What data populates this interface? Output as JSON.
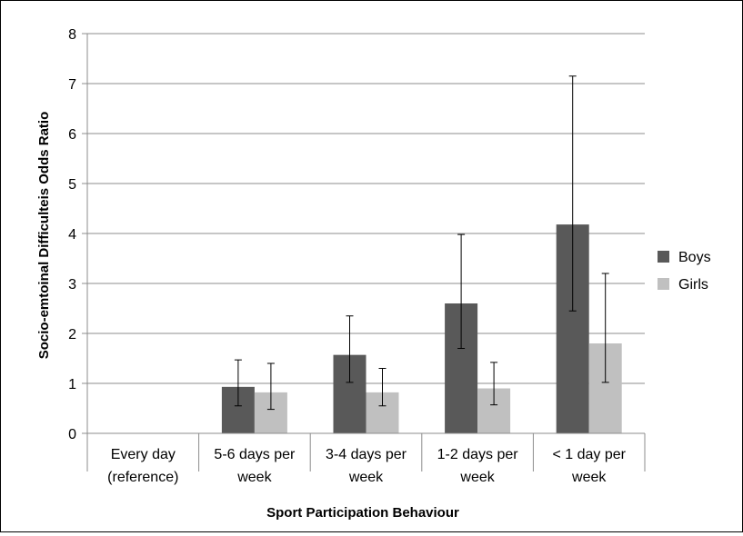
{
  "chart_data": {
    "type": "bar",
    "title": "",
    "xlabel": "Sport Participation Behaviour",
    "ylabel": "Socio-emtoinal Difficulteis Odds Ratio",
    "ylim": [
      0,
      8
    ],
    "yticks": [
      "0",
      "1",
      "2",
      "3",
      "4",
      "5",
      "6",
      "7",
      "8"
    ],
    "grid": true,
    "legend_position": "right",
    "categories": [
      [
        "Every day",
        "(reference)"
      ],
      [
        "5-6 days per",
        "week"
      ],
      [
        "3-4 days per",
        "week"
      ],
      [
        "1-2 days per",
        "week"
      ],
      [
        "< 1 day per",
        "week"
      ]
    ],
    "series": [
      {
        "name": "Boys",
        "color": "#595959",
        "values": [
          null,
          0.93,
          1.57,
          2.6,
          4.18
        ],
        "error_low": [
          null,
          0.55,
          1.02,
          1.7,
          2.45
        ],
        "error_high": [
          null,
          1.47,
          2.35,
          3.98,
          7.15
        ]
      },
      {
        "name": "Girls",
        "color": "#c0c0c0",
        "values": [
          null,
          0.82,
          0.82,
          0.9,
          1.8
        ],
        "error_low": [
          null,
          0.48,
          0.55,
          0.57,
          1.02
        ],
        "error_high": [
          null,
          1.4,
          1.3,
          1.42,
          3.2
        ]
      }
    ]
  }
}
